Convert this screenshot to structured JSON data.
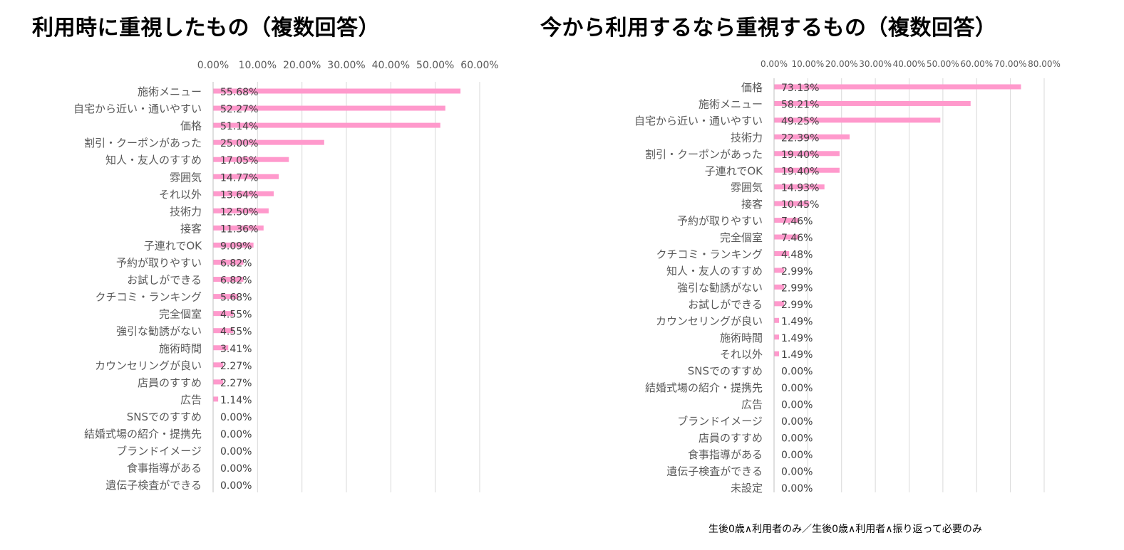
{
  "chart_data": [
    {
      "type": "bar",
      "orientation": "horizontal",
      "title": "利用時に重視したもの（複数回答）",
      "xlim": [
        0,
        60
      ],
      "ticks": [
        "0.00%",
        "10.00%",
        "20.00%",
        "30.00%",
        "40.00%",
        "50.00%",
        "60.00%"
      ],
      "grid": true,
      "bar_color": "#FF99CC",
      "categories": [
        "施術メニュー",
        "自宅から近い・通いやすい",
        "価格",
        "割引・クーポンがあった",
        "知人・友人のすすめ",
        "雰囲気",
        "それ以外",
        "技術力",
        "接客",
        "子連れでOK",
        "予約が取りやすい",
        "お試しができる",
        "クチコミ・ランキング",
        "完全個室",
        "強引な勧誘がない",
        "施術時間",
        "カウンセリングが良い",
        "店員のすすめ",
        "広告",
        "SNSでのすすめ",
        "結婚式場の紹介・提携先",
        "ブランドイメージ",
        "食事指導がある",
        "遺伝子検査ができる"
      ],
      "values": [
        55.68,
        52.27,
        51.14,
        25.0,
        17.05,
        14.77,
        13.64,
        12.5,
        11.36,
        9.09,
        6.82,
        6.82,
        5.68,
        4.55,
        4.55,
        3.41,
        2.27,
        2.27,
        1.14,
        0.0,
        0.0,
        0.0,
        0.0,
        0.0
      ],
      "labels": [
        "55.68%",
        "52.27%",
        "51.14%",
        "25.00%",
        "17.05%",
        "14.77%",
        "13.64%",
        "12.50%",
        "11.36%",
        "9.09%",
        "6.82%",
        "6.82%",
        "5.68%",
        "4.55%",
        "4.55%",
        "3.41%",
        "2.27%",
        "2.27%",
        "1.14%",
        "0.00%",
        "0.00%",
        "0.00%",
        "0.00%",
        "0.00%"
      ]
    },
    {
      "type": "bar",
      "orientation": "horizontal",
      "title": "今から利用するなら重視するもの（複数回答）",
      "xlim": [
        0,
        80
      ],
      "ticks": [
        "0.00%",
        "10.00%",
        "20.00%",
        "30.00%",
        "40.00%",
        "50.00%",
        "60.00%",
        "70.00%",
        "80.00%"
      ],
      "grid": true,
      "bar_color": "#FF99CC",
      "categories": [
        "価格",
        "施術メニュー",
        "自宅から近い・通いやすい",
        "技術力",
        "割引・クーポンがあった",
        "子連れでOK",
        "雰囲気",
        "接客",
        "予約が取りやすい",
        "完全個室",
        "クチコミ・ランキング",
        "知人・友人のすすめ",
        "強引な勧誘がない",
        "お試しができる",
        "カウンセリングが良い",
        "施術時間",
        "それ以外",
        "SNSでのすすめ",
        "結婚式場の紹介・提携先",
        "広告",
        "ブランドイメージ",
        "店員のすすめ",
        "食事指導がある",
        "遺伝子検査ができる",
        "未設定"
      ],
      "values": [
        73.13,
        58.21,
        49.25,
        22.39,
        19.4,
        19.4,
        14.93,
        10.45,
        7.46,
        7.46,
        4.48,
        2.99,
        2.99,
        2.99,
        1.49,
        1.49,
        1.49,
        0.0,
        0.0,
        0.0,
        0.0,
        0.0,
        0.0,
        0.0,
        0.0
      ],
      "labels": [
        "73.13%",
        "58.21%",
        "49.25%",
        "22.39%",
        "19.40%",
        "19.40%",
        "14.93%",
        "10.45%",
        "7.46%",
        "7.46%",
        "4.48%",
        "2.99%",
        "2.99%",
        "2.99%",
        "1.49%",
        "1.49%",
        "1.49%",
        "0.00%",
        "0.00%",
        "0.00%",
        "0.00%",
        "0.00%",
        "0.00%",
        "0.00%",
        "0.00%"
      ]
    }
  ],
  "footnote": "生後0歳∧利用者のみ／生後0歳∧利用者∧振り返って必要のみ"
}
